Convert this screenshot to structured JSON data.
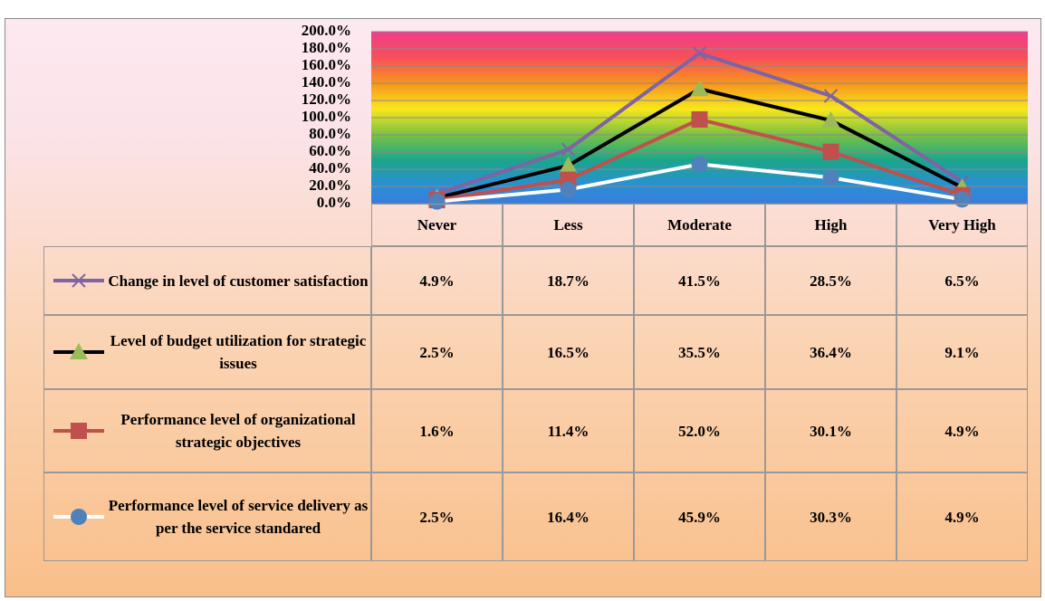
{
  "chart_data": {
    "type": "line",
    "stacked": true,
    "categories": [
      "Never",
      "Less",
      "Moderate",
      "High",
      "Very High"
    ],
    "ylim": [
      0,
      200
    ],
    "yticks": [
      {
        "value": 0,
        "label": "0.0%"
      },
      {
        "value": 20,
        "label": "20.0%"
      },
      {
        "value": 40,
        "label": "40.0%"
      },
      {
        "value": 60,
        "label": "60.0%"
      },
      {
        "value": 80,
        "label": "80.0%"
      },
      {
        "value": 100,
        "label": "100.0%"
      },
      {
        "value": 120,
        "label": "120.0%"
      },
      {
        "value": 140,
        "label": "140.0%"
      },
      {
        "value": 160,
        "label": "160.0%"
      },
      {
        "value": 180,
        "label": "180.0%"
      },
      {
        "value": 200,
        "label": "200.0%"
      }
    ],
    "grid": true,
    "series": [
      {
        "name": "Change in level of customer satisfaction",
        "color": "#7f63a2",
        "marker": "x",
        "values": [
          4.9,
          18.7,
          41.5,
          28.5,
          6.5
        ],
        "value_labels": [
          "4.9%",
          "18.7%",
          "41.5%",
          "28.5%",
          "6.5%"
        ]
      },
      {
        "name": "Level of budget utilization for strategic issues",
        "color": "#000000",
        "marker_color": "#9bbb59",
        "marker": "triangle",
        "values": [
          2.5,
          16.5,
          35.5,
          36.4,
          9.1
        ],
        "value_labels": [
          "2.5%",
          "16.5%",
          "35.5%",
          "36.4%",
          "9.1%"
        ]
      },
      {
        "name": "Performance level of organizational strategic objectives",
        "color": "#c0504d",
        "marker": "square",
        "values": [
          1.6,
          11.4,
          52.0,
          30.1,
          4.9
        ],
        "value_labels": [
          "1.6%",
          "11.4%",
          "52.0%",
          "30.1%",
          "4.9%"
        ]
      },
      {
        "name": "Performance level of service delivery as per the service standared",
        "color": "#ffffff",
        "marker_color": "#4f81bd",
        "marker": "circle",
        "values": [
          2.5,
          16.4,
          45.9,
          30.3,
          4.9
        ],
        "value_labels": [
          "2.5%",
          "16.4%",
          "45.9%",
          "30.3%",
          "4.9%"
        ]
      }
    ]
  }
}
